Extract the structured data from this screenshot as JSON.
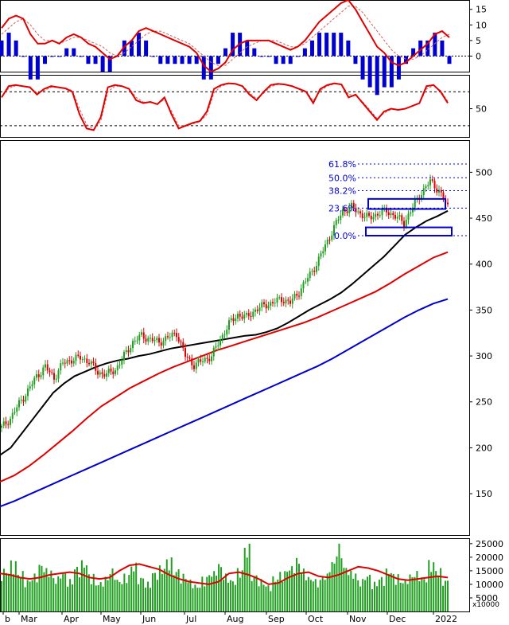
{
  "chart_data": [
    {
      "type": "line",
      "panel": "macd",
      "y_ticks": [
        "15",
        "10",
        "5",
        "0"
      ],
      "ylim": [
        -5,
        18
      ],
      "series": [
        {
          "role": "macd",
          "color": "#e00000",
          "values": [
            9,
            12,
            13,
            12,
            7,
            4,
            4,
            5,
            4,
            6,
            7,
            6,
            4,
            3,
            1,
            -1,
            0,
            3,
            5,
            8,
            9,
            8,
            7,
            6,
            5,
            4,
            3,
            1,
            -3,
            -5,
            -4,
            -2,
            2,
            4,
            5,
            5,
            5,
            5,
            4,
            3,
            2,
            3,
            5,
            8,
            11,
            13,
            15,
            17,
            18,
            15,
            11,
            7,
            3,
            1,
            -2,
            -3,
            -2,
            0,
            2,
            4,
            7,
            8,
            6
          ]
        },
        {
          "role": "signal",
          "color": "#d06060",
          "values": [
            7,
            9,
            11,
            12,
            10,
            7,
            5,
            5,
            4,
            5,
            6,
            6,
            5,
            4,
            3,
            1,
            0,
            1,
            3,
            5,
            7,
            8,
            8,
            7,
            6,
            5,
            4,
            2,
            0,
            -2,
            -3,
            -3,
            -1,
            1,
            3,
            4,
            5,
            5,
            5,
            4,
            3,
            3,
            4,
            6,
            8,
            10,
            12,
            14,
            16,
            16,
            14,
            11,
            8,
            5,
            2,
            0,
            -1,
            -1,
            0,
            2,
            4,
            6,
            7
          ]
        }
      ],
      "histogram_color": "#0000d0"
    },
    {
      "type": "line",
      "panel": "stochastic",
      "y_ticks": [
        "50"
      ],
      "ylim": [
        0,
        110
      ],
      "reference_lines": [
        80,
        20
      ],
      "series": [
        {
          "role": "k",
          "color": "#e00000",
          "values": [
            70,
            90,
            92,
            90,
            88,
            75,
            85,
            90,
            88,
            86,
            80,
            40,
            15,
            12,
            35,
            88,
            92,
            90,
            85,
            65,
            60,
            62,
            58,
            70,
            40,
            15,
            20,
            25,
            28,
            45,
            85,
            92,
            95,
            94,
            90,
            75,
            65,
            80,
            92,
            94,
            93,
            90,
            85,
            80,
            60,
            85,
            92,
            95,
            93,
            70,
            75,
            60,
            45,
            30,
            45,
            50,
            48,
            50,
            55,
            60,
            90,
            92,
            80,
            60
          ]
        },
        {
          "role": "d",
          "color": "#d06060",
          "values": [
            72,
            86,
            91,
            90,
            88,
            78,
            82,
            88,
            88,
            87,
            82,
            50,
            22,
            14,
            28,
            80,
            90,
            90,
            86,
            70,
            62,
            61,
            59,
            66,
            46,
            20,
            19,
            23,
            27,
            40,
            78,
            90,
            94,
            94,
            91,
            78,
            68,
            77,
            89,
            93,
            93,
            91,
            86,
            81,
            64,
            82,
            90,
            94,
            93,
            75,
            74,
            62,
            48,
            33,
            42,
            49,
            48,
            50,
            54,
            59,
            85,
            91,
            82,
            63
          ]
        }
      ]
    },
    {
      "type": "line",
      "panel": "price",
      "y_ticks": [
        "500",
        "450",
        "400",
        "350",
        "300",
        "250",
        "200",
        "150"
      ],
      "ylim": [
        105,
        535
      ],
      "x_tick_labels": [
        "b",
        "Mar",
        "Apr",
        "May",
        "Jun",
        "Jul",
        "Aug",
        "Sep",
        "Oct",
        "Nov",
        "Dec",
        "2022"
      ],
      "fibonacci": [
        {
          "label": "61.8%",
          "value": 509
        },
        {
          "label": "50.0%",
          "value": 494
        },
        {
          "label": "38.2%",
          "value": 480
        },
        {
          "label": "23.6%",
          "value": 461
        },
        {
          "label": "0.0%",
          "value": 431
        }
      ],
      "price_close": [
        222,
        232,
        248,
        262,
        278,
        288,
        276,
        292,
        296,
        298,
        294,
        282,
        280,
        285,
        300,
        315,
        322,
        318,
        315,
        320,
        325,
        300,
        290,
        295,
        300,
        318,
        335,
        345,
        342,
        350,
        355,
        358,
        362,
        358,
        370,
        385,
        400,
        420,
        440,
        458,
        462,
        455,
        450,
        455,
        458,
        452,
        445,
        462,
        478,
        490,
        480,
        462
      ],
      "ma_short": {
        "color": "#000000",
        "values": [
          192,
          200,
          215,
          230,
          245,
          260,
          270,
          278,
          283,
          288,
          292,
          295,
          297,
          300,
          302,
          305,
          308,
          310,
          312,
          314,
          316,
          318,
          320,
          322,
          323,
          326,
          330,
          336,
          343,
          350,
          356,
          362,
          369,
          378,
          388,
          398,
          408,
          420,
          432,
          440,
          447,
          452,
          458
        ]
      },
      "ma_mid": {
        "color": "#e00000",
        "values": [
          163,
          170,
          180,
          192,
          205,
          218,
          232,
          245,
          255,
          265,
          273,
          281,
          288,
          294,
          300,
          306,
          311,
          316,
          321,
          326,
          331,
          336,
          342,
          349,
          356,
          363,
          370,
          379,
          389,
          398,
          407,
          413
        ]
      },
      "ma_long": {
        "color": "#0000d0",
        "values": [
          136,
          142,
          149,
          156,
          163,
          170,
          177,
          184,
          191,
          198,
          205,
          212,
          219,
          226,
          233,
          240,
          247,
          254,
          261,
          268,
          275,
          282,
          289,
          297,
          306,
          315,
          324,
          333,
          342,
          350,
          357,
          362
        ]
      }
    },
    {
      "type": "bar",
      "panel": "volume",
      "y_ticks": [
        "25000",
        "20000",
        "15000",
        "10000",
        "5000"
      ],
      "unit_label": "x10000",
      "ylim": [
        0,
        27000
      ],
      "bar_color": "#20a020",
      "values": [
        16000,
        19000,
        15000,
        12000,
        14000,
        18000,
        16000,
        13000,
        15000,
        12000,
        17000,
        19000,
        14000,
        11000,
        13000,
        16000,
        12000,
        14000,
        18000,
        13000,
        11000,
        15000,
        17000,
        20000,
        16000,
        14000,
        12000,
        10000,
        13000,
        15000,
        18000,
        14000,
        12000,
        16000,
        25000,
        14000,
        12000,
        10000,
        13000,
        15000,
        17000,
        20000,
        16000,
        13000,
        12000,
        14000,
        19000,
        25000,
        17000,
        15000,
        12000,
        14000,
        11000,
        13000,
        16000,
        14000,
        12000,
        14000,
        15000,
        13000,
        19000,
        16000,
        12000
      ],
      "ma": {
        "color": "#e00000",
        "values": [
          14000,
          13500,
          12500,
          12000,
          12500,
          13500,
          14000,
          14500,
          14000,
          12500,
          12000,
          12500,
          15000,
          17000,
          17500,
          16500,
          15500,
          13500,
          12000,
          11000,
          10500,
          10000,
          11000,
          14000,
          14500,
          13500,
          12000,
          10000,
          10500,
          12500,
          14000,
          14500,
          13000,
          12500,
          13500,
          15000,
          16500,
          16000,
          15000,
          13500,
          12000,
          11500,
          12000,
          12500,
          13000,
          12500
        ]
      }
    }
  ]
}
